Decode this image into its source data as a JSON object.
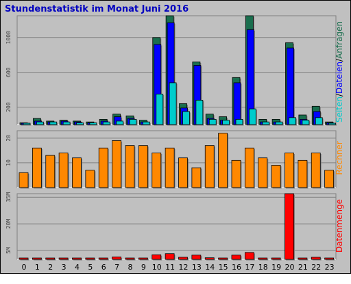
{
  "title": "Stundenstatistik im Monat Juni 2016",
  "colors": {
    "background": "#c0c0c0",
    "title": "#0000c0",
    "seiten": "#00cccc",
    "dateien": "#0000ff",
    "anfragen": "#1a6e4e",
    "rechner": "#ff8800",
    "datenmenge": "#ff0000"
  },
  "labels": {
    "seiten": "Seiten",
    "slash1": "/",
    "dateien": "Dateien",
    "slash2": "/",
    "anfragen": "Anfragen",
    "rechner": "Rechner",
    "datenmenge": "Datenmenge"
  },
  "chart_data": [
    {
      "type": "bar",
      "categories": [
        "0",
        "1",
        "2",
        "3",
        "4",
        "5",
        "6",
        "7",
        "8",
        "9",
        "10",
        "11",
        "12",
        "13",
        "14",
        "15",
        "16",
        "17",
        "18",
        "19",
        "20",
        "21",
        "22",
        "23"
      ],
      "series": [
        {
          "name": "Anfragen",
          "values": [
            20,
            70,
            40,
            50,
            40,
            30,
            60,
            120,
            100,
            50,
            1000,
            1250,
            240,
            720,
            120,
            90,
            540,
            1250,
            60,
            60,
            940,
            110,
            210,
            30
          ]
        },
        {
          "name": "Dateien",
          "values": [
            10,
            40,
            30,
            40,
            30,
            20,
            40,
            90,
            70,
            30,
            920,
            1170,
            190,
            680,
            70,
            50,
            480,
            1090,
            30,
            30,
            880,
            60,
            150,
            20
          ]
        },
        {
          "name": "Seiten",
          "values": [
            10,
            30,
            30,
            30,
            20,
            20,
            30,
            40,
            60,
            30,
            350,
            480,
            150,
            280,
            60,
            50,
            60,
            180,
            30,
            30,
            80,
            50,
            80,
            10
          ]
        }
      ],
      "yticks": [
        200,
        600,
        1000
      ],
      "ylim": [
        0,
        1250
      ]
    },
    {
      "type": "bar",
      "categories": [
        "0",
        "1",
        "2",
        "3",
        "4",
        "5",
        "6",
        "7",
        "8",
        "9",
        "10",
        "11",
        "12",
        "13",
        "14",
        "15",
        "16",
        "17",
        "18",
        "19",
        "20",
        "21",
        "22",
        "23"
      ],
      "series": [
        {
          "name": "Rechner",
          "values": [
            6,
            16,
            13,
            14,
            12,
            7,
            16,
            19,
            17,
            17,
            14,
            16,
            12,
            8,
            17,
            22,
            11,
            16,
            12,
            9,
            14,
            11,
            14,
            7
          ]
        }
      ],
      "yticks": [
        10,
        20
      ],
      "ylim": [
        0,
        23
      ]
    },
    {
      "type": "bar",
      "categories": [
        "0",
        "1",
        "2",
        "3",
        "4",
        "5",
        "6",
        "7",
        "8",
        "9",
        "10",
        "11",
        "12",
        "13",
        "14",
        "15",
        "16",
        "17",
        "18",
        "19",
        "20",
        "21",
        "22",
        "23"
      ],
      "series": [
        {
          "name": "Datenmenge",
          "values": [
            0.3,
            0.6,
            0.3,
            0.3,
            0.3,
            0.3,
            0.3,
            1.4,
            0.6,
            0.3,
            2.6,
            3.2,
            1.2,
            2.4,
            0.9,
            0.3,
            2.4,
            3.9,
            0.3,
            0.3,
            37,
            0.6,
            1.2,
            0.3
          ]
        }
      ],
      "yticks": [
        "5M",
        "20M",
        "35M"
      ],
      "ytick_values": [
        5,
        20,
        35
      ],
      "ylim": [
        0,
        37
      ]
    }
  ]
}
